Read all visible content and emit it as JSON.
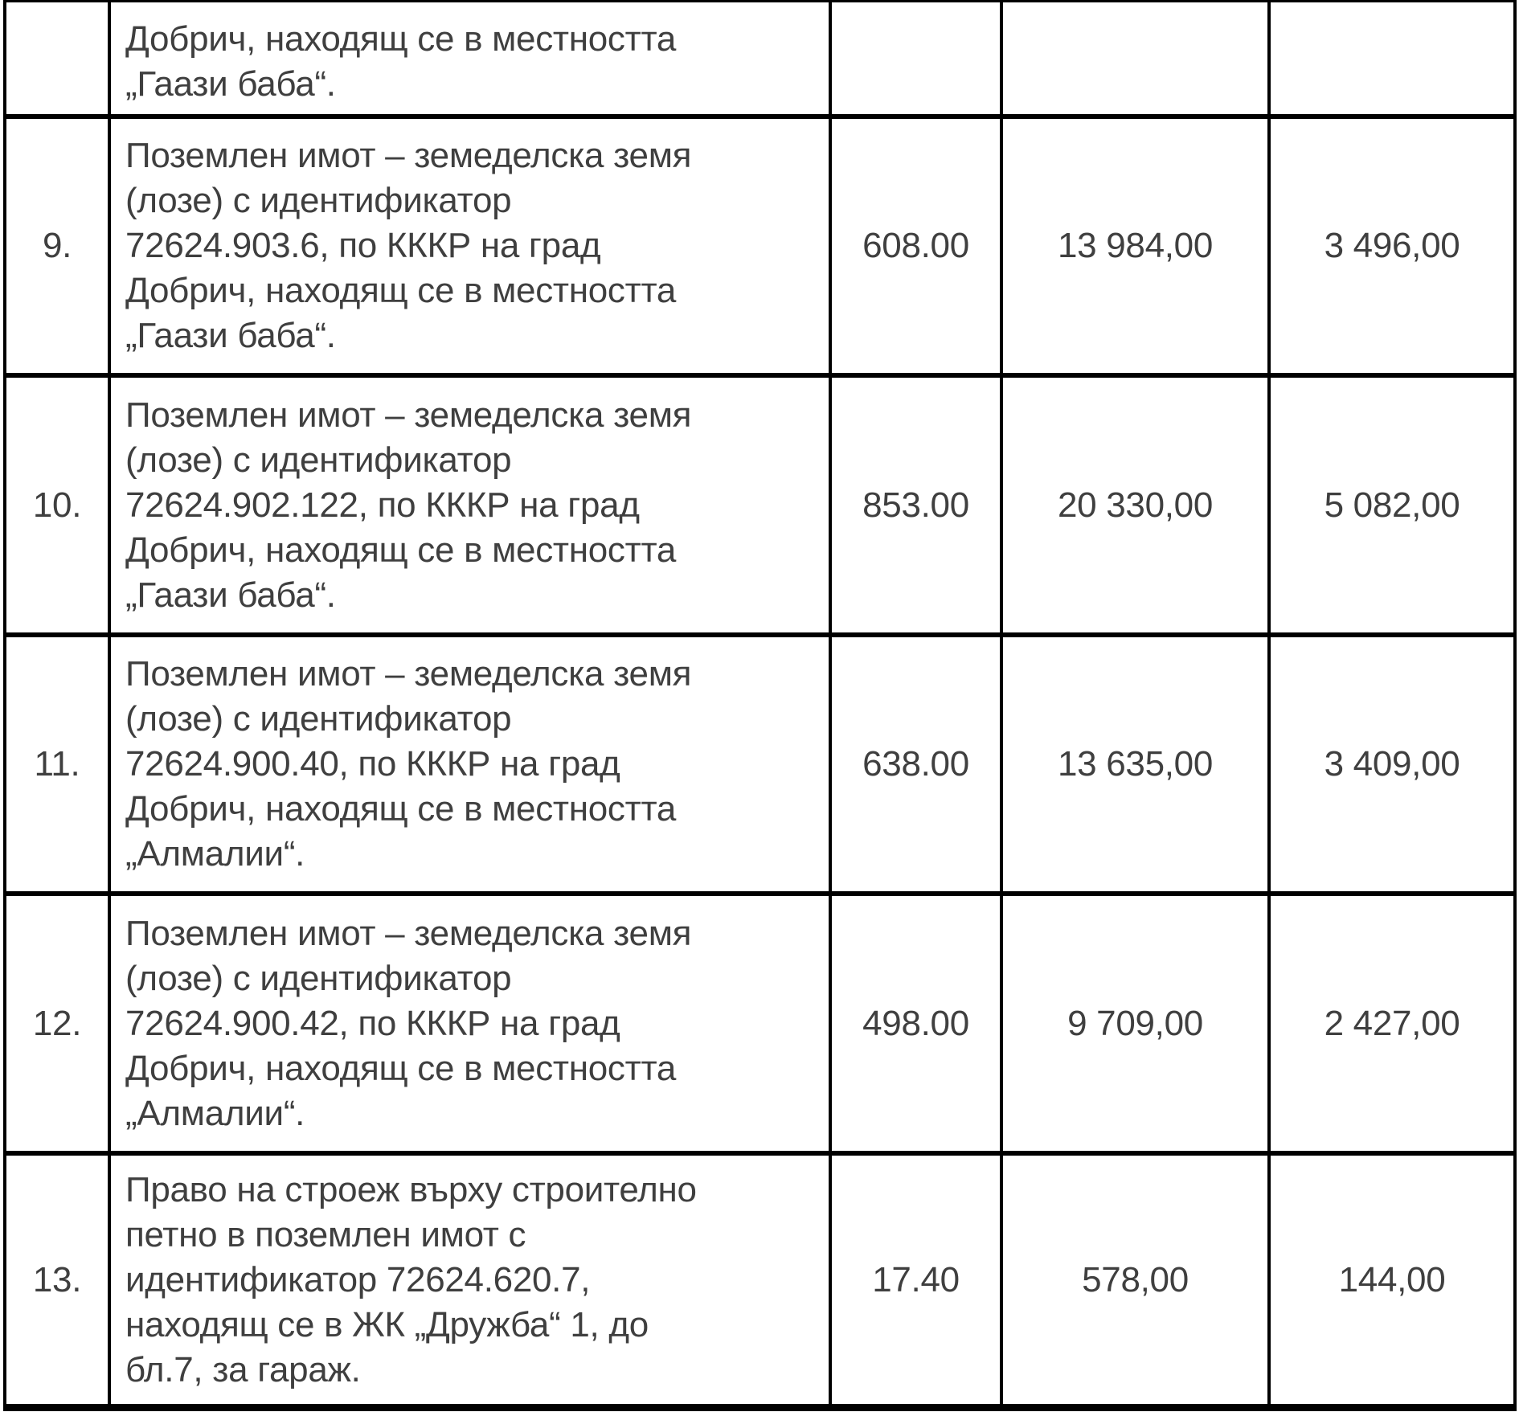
{
  "document": {
    "language": "bg",
    "text_color": "#3f3f3f",
    "border_color": "#000000",
    "rows": [
      {
        "number": "",
        "description": "Добрич, находящ се в местността\n„Гаази баба“.",
        "value_1": "",
        "value_2": "",
        "value_3": ""
      },
      {
        "number": "9.",
        "description": "Поземлен имот – земеделска земя\n(лозе) с идентификатор\n72624.903.6, по КККР на град\nДобрич, находящ се в местността\n„Гаази баба“.",
        "value_1": "608.00",
        "value_2": "13 984,00",
        "value_3": "3 496,00"
      },
      {
        "number": "10.",
        "description": "Поземлен имот – земеделска земя\n(лозе) с идентификатор\n72624.902.122, по КККР на град\nДобрич, находящ се в местността\n„Гаази баба“.",
        "value_1": "853.00",
        "value_2": "20 330,00",
        "value_3": "5 082,00"
      },
      {
        "number": "11.",
        "description": "Поземлен имот – земеделска земя\n(лозе) с идентификатор\n72624.900.40, по КККР на град\nДобрич, находящ се в местността\n„Алмалии“.",
        "value_1": "638.00",
        "value_2": "13 635,00",
        "value_3": "3 409,00"
      },
      {
        "number": "12.",
        "description": "Поземлен имот – земеделска земя\n(лозе) с идентификатор\n72624.900.42, по КККР на град\nДобрич, находящ се в местността\n„Алмалии“.",
        "value_1": "498.00",
        "value_2": "9 709,00",
        "value_3": "2 427,00"
      },
      {
        "number": "13.",
        "description": "Право на строеж върху строително\nпетно в поземлен имот с\nидентификатор 72624.620.7,\nнаходящ се в ЖК „Дружба“ 1, до\nбл.7, за гараж.",
        "value_1": "17.40",
        "value_2": "578,00",
        "value_3": "144,00"
      }
    ]
  }
}
